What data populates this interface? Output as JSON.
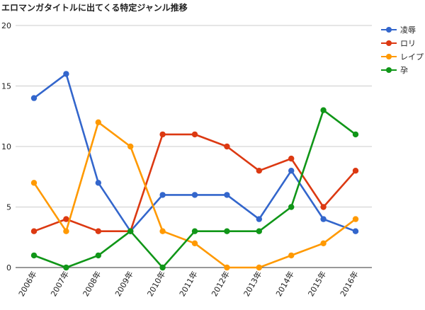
{
  "title": "エロマンガタイトルに出てくる特定ジャンル推移",
  "chart_data": {
    "type": "line",
    "title": "エロマンガタイトルに出てくる特定ジャンル推移",
    "categories": [
      "2006年",
      "2007年",
      "2008年",
      "2009年",
      "2010年",
      "2011年",
      "2012年",
      "2013年",
      "2014年",
      "2015年",
      "2016年"
    ],
    "ylim": [
      0,
      20
    ],
    "yticks": [
      "0",
      "5",
      "10",
      "15",
      "20"
    ],
    "grid": true,
    "legend_position": "right",
    "series": [
      {
        "name": "凌辱",
        "color": "#3366cc",
        "values": [
          14,
          16,
          7,
          3,
          6,
          6,
          6,
          4,
          8,
          4,
          3
        ]
      },
      {
        "name": "ロリ",
        "color": "#dc3912",
        "values": [
          3,
          4,
          3,
          3,
          11,
          11,
          10,
          8,
          9,
          5,
          8
        ]
      },
      {
        "name": "レイプ",
        "color": "#ff9900",
        "values": [
          7,
          3,
          12,
          10,
          3,
          2,
          0,
          0,
          1,
          2,
          4
        ]
      },
      {
        "name": "孕",
        "color": "#109618",
        "values": [
          1,
          0,
          1,
          3,
          0,
          3,
          3,
          3,
          5,
          13,
          11
        ]
      }
    ]
  }
}
